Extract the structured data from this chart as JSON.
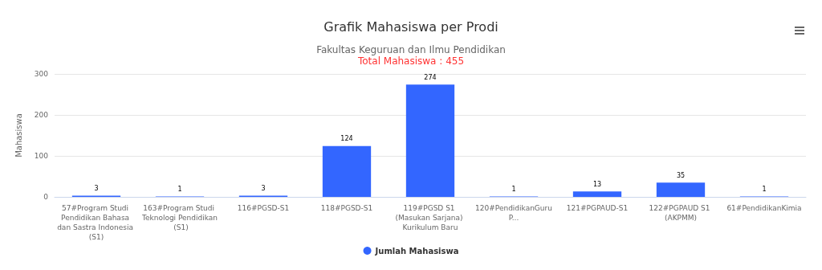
{
  "chart_data": {
    "type": "bar",
    "title": "Grafik Mahasiswa per Prodi",
    "subtitle": "Fakultas Keguruan dan Ilmu Pendidikan",
    "annotations": [
      "Total Mahasiswa : 455"
    ],
    "ylabel": "Mahasiswa",
    "categories": [
      "57#Program Studi Pendidikan Bahasa dan Sastra Indonesia (S1)",
      "163#Program Studi Teknologi Pendidikan (S1)",
      "116#PGSD-S1",
      "118#PGSD-S1",
      "119#PGSD S1 (Masukan Sarjana) Kurikulum Baru",
      "120#PendidikanGuruP...",
      "121#PGPAUD-S1",
      "122#PGPAUD S1 (AKPMM)",
      "61#PendidikanKimia"
    ],
    "series": [
      {
        "name": "Jumlah Mahasiswa",
        "color": "#3366ff",
        "values": [
          3,
          1,
          3,
          124,
          274,
          1,
          13,
          35,
          1
        ]
      }
    ],
    "ylim": [
      0,
      300
    ],
    "yticks": [
      0,
      100,
      200,
      300
    ],
    "grid": "y",
    "legend": "bottom",
    "data_labels": true
  }
}
